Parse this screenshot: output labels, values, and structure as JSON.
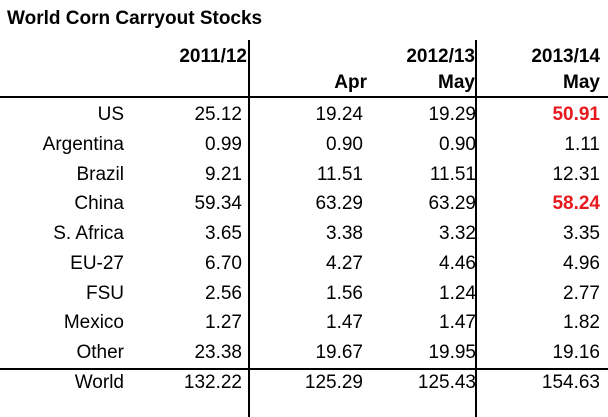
{
  "chart_data": {
    "type": "table",
    "title": "World Corn Carryout Stocks",
    "header": {
      "years": [
        "2011/12",
        "2012/13",
        "2013/14"
      ],
      "months": [
        "",
        "Apr",
        "May",
        "May"
      ]
    },
    "columns": [
      "2011/12",
      "2012/13 Apr",
      "2012/13 May",
      "2013/14 May"
    ],
    "rows": [
      {
        "label": "US",
        "values": [
          "25.12",
          "19.24",
          "19.29",
          "50.91"
        ],
        "highlight": [
          false,
          false,
          false,
          true
        ]
      },
      {
        "label": "Argentina",
        "values": [
          "0.99",
          "0.90",
          "0.90",
          "1.11"
        ],
        "highlight": [
          false,
          false,
          false,
          false
        ]
      },
      {
        "label": "Brazil",
        "values": [
          "9.21",
          "11.51",
          "11.51",
          "12.31"
        ],
        "highlight": [
          false,
          false,
          false,
          false
        ]
      },
      {
        "label": "China",
        "values": [
          "59.34",
          "63.29",
          "63.29",
          "58.24"
        ],
        "highlight": [
          false,
          false,
          false,
          true
        ]
      },
      {
        "label": "S. Africa",
        "values": [
          "3.65",
          "3.38",
          "3.32",
          "3.35"
        ],
        "highlight": [
          false,
          false,
          false,
          false
        ]
      },
      {
        "label": "EU-27",
        "values": [
          "6.70",
          "4.27",
          "4.46",
          "4.96"
        ],
        "highlight": [
          false,
          false,
          false,
          false
        ]
      },
      {
        "label": "FSU",
        "values": [
          "2.56",
          "1.56",
          "1.24",
          "2.77"
        ],
        "highlight": [
          false,
          false,
          false,
          false
        ]
      },
      {
        "label": "Mexico",
        "values": [
          "1.27",
          "1.47",
          "1.47",
          "1.82"
        ],
        "highlight": [
          false,
          false,
          false,
          false
        ]
      },
      {
        "label": "Other",
        "values": [
          "23.38",
          "19.67",
          "19.95",
          "19.16"
        ],
        "highlight": [
          false,
          false,
          false,
          false
        ]
      },
      {
        "label": "World",
        "values": [
          "132.22",
          "125.29",
          "125.43",
          "154.63"
        ],
        "highlight": [
          false,
          false,
          false,
          false
        ]
      }
    ],
    "highlight_color": "#e8191c"
  }
}
